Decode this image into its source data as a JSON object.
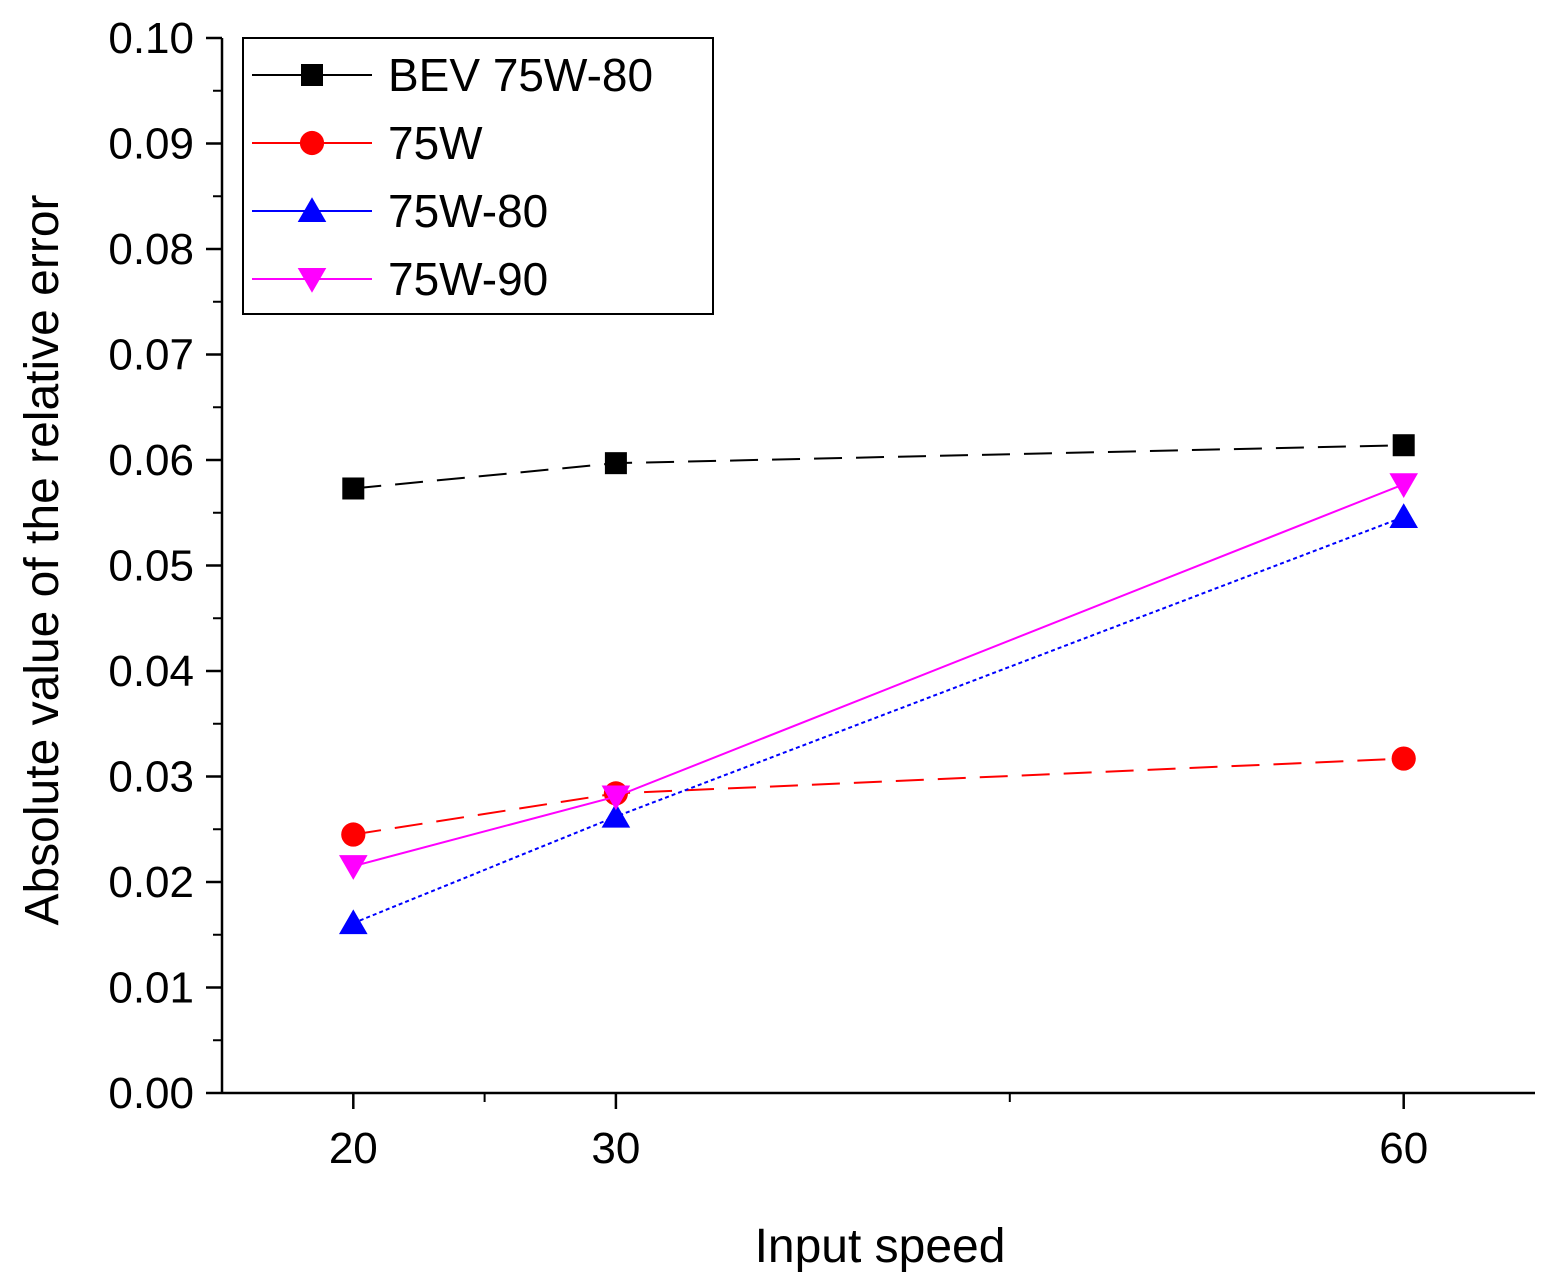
{
  "chart_data": {
    "type": "line",
    "title": "",
    "xlabel": "Input speed",
    "ylabel": "Absolute value of the relative error",
    "x": [
      20,
      30,
      60
    ],
    "xlim": [
      15,
      65
    ],
    "xticks": [
      20,
      30,
      60
    ],
    "x_minor_ticks": [
      25,
      45
    ],
    "ylim": [
      0,
      0.1
    ],
    "yticks": [
      "0.00",
      "0.01",
      "0.02",
      "0.03",
      "0.04",
      "0.05",
      "0.06",
      "0.07",
      "0.08",
      "0.09",
      "0.10"
    ],
    "grid": false,
    "legend_position": "top-left",
    "series": [
      {
        "name": "BEV 75W-80",
        "values": [
          0.0573,
          0.0597,
          0.0614
        ],
        "color": "#000000",
        "marker": "square",
        "line_style": "dashed"
      },
      {
        "name": "75W",
        "values": [
          0.0245,
          0.0284,
          0.0317
        ],
        "color": "#ff0000",
        "marker": "circle",
        "line_style": "dashed"
      },
      {
        "name": "75W-80",
        "values": [
          0.0161,
          0.0262,
          0.0546
        ],
        "color": "#0000ff",
        "marker": "triangle-up",
        "line_style": "dotted"
      },
      {
        "name": "75W-90",
        "values": [
          0.0215,
          0.0281,
          0.0577
        ],
        "color": "#ff00ff",
        "marker": "triangle-down",
        "line_style": "solid"
      }
    ]
  }
}
